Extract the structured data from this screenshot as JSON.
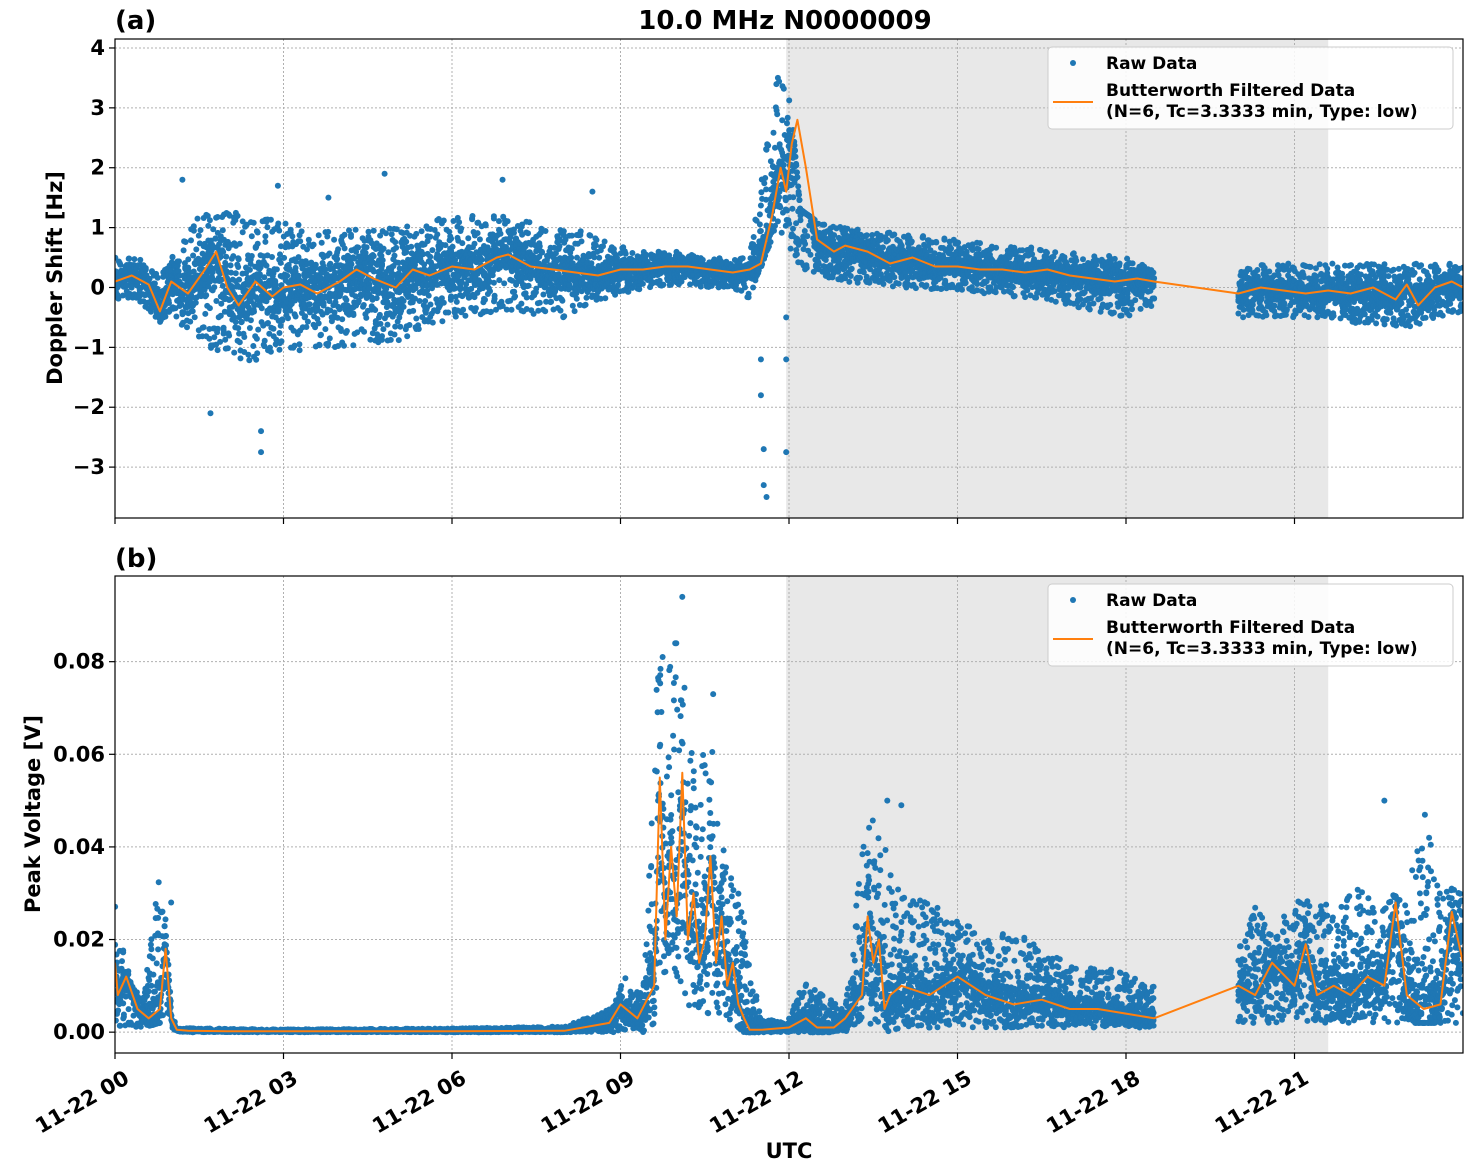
{
  "figure": {
    "title": "10.0 MHz N0000009",
    "xlabel": "UTC",
    "x_ticks": [
      "11-22 00",
      "11-22 03",
      "11-22 06",
      "11-22 09",
      "11-22 12",
      "11-22 15",
      "11-22 18",
      "11-22 21"
    ],
    "colors": {
      "raw": "#1f77b4",
      "filtered": "#ff7f0e",
      "shade": "#e8e8e8",
      "grid": "#b0b0b0"
    }
  },
  "chart_data": [
    {
      "type": "scatter",
      "panel_label": "(a)",
      "title": "10.0 MHz N0000009",
      "xlabel": "",
      "ylabel": "Doppler Shift [Hz]",
      "x_range_hours": [
        0,
        24
      ],
      "ylim": [
        -3.85,
        4.15
      ],
      "y_ticks": [
        -3,
        -2,
        -1,
        0,
        1,
        2,
        3,
        4
      ],
      "y_tick_labels": [
        "−3",
        "−2",
        "−1",
        "0",
        "1",
        "2",
        "3",
        "4"
      ],
      "shaded_region_hours": [
        11.95,
        21.6
      ],
      "data_gap_hours": [
        18.5,
        20.0
      ],
      "grid": true,
      "legend_position": "top-right",
      "legend": [
        "Raw Data",
        "Butterworth Filtered Data",
        "(N=6, Tc=3.3333 min, Type: low)"
      ],
      "series": [
        {
          "name": "Raw Data",
          "style": "points",
          "envelope": {
            "x": [
              0,
              0.4,
              0.8,
              1.0,
              1.5,
              2.0,
              2.5,
              3.0,
              3.5,
              4.0,
              5.0,
              6.0,
              7.0,
              8.0,
              8.5,
              9.0,
              9.5,
              10.0,
              10.5,
              11.0,
              11.3,
              11.6,
              11.8,
              12.0,
              12.2,
              12.5,
              13.0,
              14.0,
              15.0,
              16.0,
              17.0,
              18.0,
              18.5,
              20.0,
              20.5,
              21.0,
              21.5,
              22.0,
              22.5,
              23.0,
              23.5,
              24.0
            ],
            "lo": [
              -0.2,
              -0.2,
              -0.6,
              -0.4,
              -1.0,
              -1.1,
              -1.3,
              -1.0,
              -1.1,
              -1.0,
              -0.9,
              -0.5,
              -0.4,
              -0.5,
              -0.3,
              -0.1,
              0.0,
              0.05,
              0.0,
              0.0,
              -0.2,
              0.6,
              1.0,
              0.7,
              0.3,
              0.2,
              0.1,
              0.0,
              -0.05,
              -0.15,
              -0.3,
              -0.5,
              -0.3,
              -0.5,
              -0.5,
              -0.5,
              -0.5,
              -0.6,
              -0.6,
              -0.7,
              -0.5,
              -0.4
            ],
            "hi": [
              0.5,
              0.5,
              0.2,
              0.5,
              1.2,
              1.3,
              1.2,
              1.1,
              1.0,
              1.0,
              1.0,
              1.2,
              1.2,
              1.0,
              0.9,
              0.7,
              0.6,
              0.6,
              0.5,
              0.5,
              0.5,
              2.5,
              3.6,
              3.4,
              1.3,
              1.1,
              1.0,
              0.9,
              0.8,
              0.7,
              0.6,
              0.5,
              0.3,
              0.3,
              0.4,
              0.4,
              0.4,
              0.4,
              0.4,
              0.4,
              0.4,
              0.4
            ]
          },
          "outliers": [
            [
              1.2,
              1.8
            ],
            [
              1.7,
              -2.1
            ],
            [
              2.6,
              -2.75
            ],
            [
              2.6,
              -2.4
            ],
            [
              2.9,
              1.7
            ],
            [
              3.8,
              1.5
            ],
            [
              4.8,
              1.9
            ],
            [
              6.9,
              1.8
            ],
            [
              8.5,
              1.6
            ],
            [
              11.5,
              -1.2
            ],
            [
              11.5,
              -1.8
            ],
            [
              11.55,
              -2.7
            ],
            [
              11.55,
              -3.3
            ],
            [
              11.6,
              -3.5
            ],
            [
              11.95,
              -2.75
            ],
            [
              11.95,
              -0.5
            ],
            [
              11.95,
              -1.2
            ]
          ]
        },
        {
          "name": "Butterworth Filtered Data",
          "style": "line",
          "x": [
            0,
            0.3,
            0.6,
            0.8,
            1.0,
            1.3,
            1.6,
            1.8,
            2.0,
            2.2,
            2.5,
            2.8,
            3.0,
            3.3,
            3.6,
            4.0,
            4.3,
            4.6,
            5.0,
            5.3,
            5.6,
            6.0,
            6.4,
            6.8,
            7.0,
            7.4,
            7.8,
            8.2,
            8.6,
            9.0,
            9.4,
            9.8,
            10.2,
            10.6,
            11.0,
            11.3,
            11.5,
            11.7,
            11.85,
            11.95,
            12.05,
            12.15,
            12.3,
            12.5,
            12.8,
            13.0,
            13.4,
            13.8,
            14.2,
            14.6,
            15.0,
            15.4,
            15.8,
            16.2,
            16.6,
            17.0,
            17.4,
            17.8,
            18.2,
            18.5,
            20.0,
            20.4,
            20.8,
            21.2,
            21.6,
            22.0,
            22.4,
            22.8,
            23.0,
            23.2,
            23.5,
            23.8,
            24.0
          ],
          "y": [
            0.1,
            0.2,
            0.05,
            -0.4,
            0.1,
            -0.1,
            0.3,
            0.6,
            0.0,
            -0.3,
            0.1,
            -0.15,
            0.0,
            0.05,
            -0.1,
            0.1,
            0.3,
            0.15,
            0.0,
            0.3,
            0.2,
            0.35,
            0.3,
            0.5,
            0.55,
            0.35,
            0.3,
            0.25,
            0.2,
            0.3,
            0.3,
            0.35,
            0.35,
            0.3,
            0.25,
            0.3,
            0.4,
            1.2,
            2.0,
            1.6,
            2.4,
            2.8,
            2.0,
            0.8,
            0.6,
            0.7,
            0.6,
            0.4,
            0.5,
            0.35,
            0.35,
            0.3,
            0.3,
            0.25,
            0.3,
            0.2,
            0.15,
            0.1,
            0.15,
            0.1,
            -0.1,
            0.0,
            -0.05,
            -0.1,
            -0.05,
            -0.1,
            0.0,
            -0.2,
            0.05,
            -0.3,
            0.0,
            0.1,
            0.0
          ]
        }
      ]
    },
    {
      "type": "scatter",
      "panel_label": "(b)",
      "title": "",
      "xlabel": "UTC",
      "ylabel": "Peak Voltage [V]",
      "x_range_hours": [
        0,
        24
      ],
      "ylim": [
        -0.0045,
        0.0985
      ],
      "y_ticks": [
        0.0,
        0.02,
        0.04,
        0.06,
        0.08
      ],
      "y_tick_labels": [
        "0.00",
        "0.02",
        "0.04",
        "0.06",
        "0.08"
      ],
      "shaded_region_hours": [
        11.95,
        21.6
      ],
      "data_gap_hours": [
        18.5,
        20.0
      ],
      "grid": true,
      "legend_position": "top-right",
      "legend": [
        "Raw Data",
        "Butterworth Filtered Data",
        "(N=6, Tc=3.3333 min, Type: low)"
      ],
      "series": [
        {
          "name": "Raw Data",
          "style": "points",
          "envelope": {
            "x": [
              0,
              0.1,
              0.3,
              0.5,
              0.8,
              0.9,
              1.0,
              1.1,
              1.5,
              3.0,
              6.0,
              8.0,
              8.8,
              9.1,
              9.4,
              9.6,
              9.65,
              9.8,
              10.0,
              10.2,
              10.4,
              10.6,
              10.8,
              11.0,
              11.2,
              11.3,
              11.5,
              11.95,
              12.3,
              12.6,
              13.0,
              13.3,
              13.4,
              13.7,
              14.0,
              14.5,
              15.0,
              15.5,
              16.0,
              16.5,
              17.0,
              17.5,
              18.0,
              18.5,
              20.0,
              20.3,
              20.6,
              21.0,
              21.3,
              21.6,
              22.0,
              22.3,
              22.5,
              22.7,
              23.0,
              23.3,
              23.6,
              24.0
            ],
            "lo": [
              0.002,
              0.001,
              0.001,
              0.001,
              0.002,
              0.005,
              0.001,
              0.0,
              0.0,
              0.0,
              0.0,
              0.0,
              0.0,
              0.0,
              0.0,
              0.002,
              0.01,
              0.01,
              0.008,
              0.006,
              0.004,
              0.004,
              0.004,
              0.002,
              0.0,
              0.0,
              0.0,
              0.0,
              0.0,
              0.0,
              0.0,
              0.003,
              0.002,
              0.0,
              0.001,
              0.001,
              0.001,
              0.001,
              0.001,
              0.001,
              0.001,
              0.001,
              0.001,
              0.001,
              0.002,
              0.002,
              0.002,
              0.002,
              0.002,
              0.002,
              0.002,
              0.002,
              0.002,
              0.002,
              0.002,
              0.002,
              0.002,
              0.002
            ],
            "hi": [
              0.03,
              0.02,
              0.01,
              0.008,
              0.035,
              0.028,
              0.005,
              0.001,
              0.0008,
              0.0006,
              0.0008,
              0.0012,
              0.005,
              0.013,
              0.008,
              0.06,
              0.081,
              0.075,
              0.09,
              0.072,
              0.055,
              0.073,
              0.042,
              0.035,
              0.025,
              0.015,
              0.003,
              0.002,
              0.012,
              0.008,
              0.005,
              0.04,
              0.049,
              0.04,
              0.03,
              0.028,
              0.025,
              0.02,
              0.022,
              0.018,
              0.015,
              0.014,
              0.013,
              0.01,
              0.02,
              0.027,
              0.022,
              0.028,
              0.03,
              0.028,
              0.03,
              0.032,
              0.025,
              0.03,
              0.028,
              0.05,
              0.03,
              0.032
            ]
          },
          "outliers": [
            [
              10.1,
              0.094
            ],
            [
              9.75,
              0.081
            ],
            [
              10.65,
              0.073
            ],
            [
              13.75,
              0.05
            ],
            [
              14.0,
              0.049
            ],
            [
              22.6,
              0.05
            ],
            [
              1.0,
              0.028
            ]
          ]
        },
        {
          "name": "Butterworth Filtered Data",
          "style": "line",
          "x": [
            0,
            0.05,
            0.2,
            0.4,
            0.6,
            0.8,
            0.9,
            1.0,
            1.1,
            1.3,
            2.0,
            4.0,
            6.0,
            8.0,
            8.8,
            9.0,
            9.3,
            9.6,
            9.7,
            9.8,
            9.9,
            10.0,
            10.1,
            10.2,
            10.3,
            10.4,
            10.5,
            10.6,
            10.7,
            10.8,
            10.9,
            11.0,
            11.1,
            11.2,
            11.3,
            11.5,
            12.0,
            12.3,
            12.5,
            12.8,
            13.0,
            13.3,
            13.4,
            13.5,
            13.6,
            13.7,
            13.8,
            14.0,
            14.5,
            15.0,
            15.5,
            16.0,
            16.5,
            17.0,
            17.5,
            18.0,
            18.5,
            20.0,
            20.3,
            20.6,
            21.0,
            21.2,
            21.4,
            21.7,
            22.0,
            22.3,
            22.6,
            22.8,
            23.0,
            23.3,
            23.6,
            23.8,
            24.0
          ],
          "y": [
            0.015,
            0.008,
            0.012,
            0.005,
            0.003,
            0.005,
            0.018,
            0.003,
            0.0005,
            0.0003,
            0.0002,
            0.0002,
            0.0002,
            0.0003,
            0.002,
            0.006,
            0.003,
            0.01,
            0.055,
            0.02,
            0.04,
            0.025,
            0.056,
            0.02,
            0.03,
            0.015,
            0.02,
            0.038,
            0.015,
            0.025,
            0.01,
            0.015,
            0.006,
            0.003,
            0.0005,
            0.0005,
            0.001,
            0.003,
            0.001,
            0.001,
            0.003,
            0.008,
            0.025,
            0.015,
            0.02,
            0.005,
            0.008,
            0.01,
            0.008,
            0.012,
            0.008,
            0.006,
            0.007,
            0.005,
            0.005,
            0.004,
            0.003,
            0.01,
            0.008,
            0.015,
            0.01,
            0.019,
            0.008,
            0.01,
            0.008,
            0.012,
            0.01,
            0.028,
            0.008,
            0.005,
            0.006,
            0.026,
            0.015
          ]
        }
      ]
    }
  ]
}
